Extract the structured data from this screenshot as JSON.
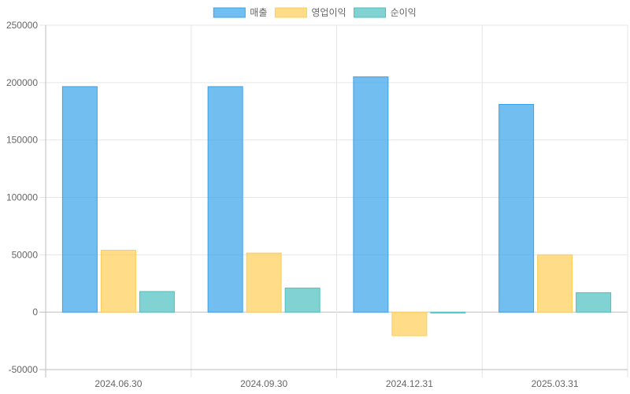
{
  "chart_data": {
    "type": "bar",
    "categories": [
      "2024.06.30",
      "2024.09.30",
      "2024.12.31",
      "2025.03.31"
    ],
    "series": [
      {
        "name": "매출",
        "values": [
          196500,
          196500,
          205000,
          181000
        ],
        "color": "#36a2eb"
      },
      {
        "name": "영업이익",
        "values": [
          54000,
          51500,
          -20500,
          50000
        ],
        "color": "#ffcd56"
      },
      {
        "name": "순이익",
        "values": [
          18000,
          21000,
          -500,
          17000
        ],
        "color": "#4bc0c0"
      }
    ],
    "ylim": [
      -50000,
      250000
    ],
    "yticks": [
      -50000,
      0,
      50000,
      100000,
      150000,
      200000,
      250000
    ],
    "grid": true,
    "legend": "top-center"
  }
}
